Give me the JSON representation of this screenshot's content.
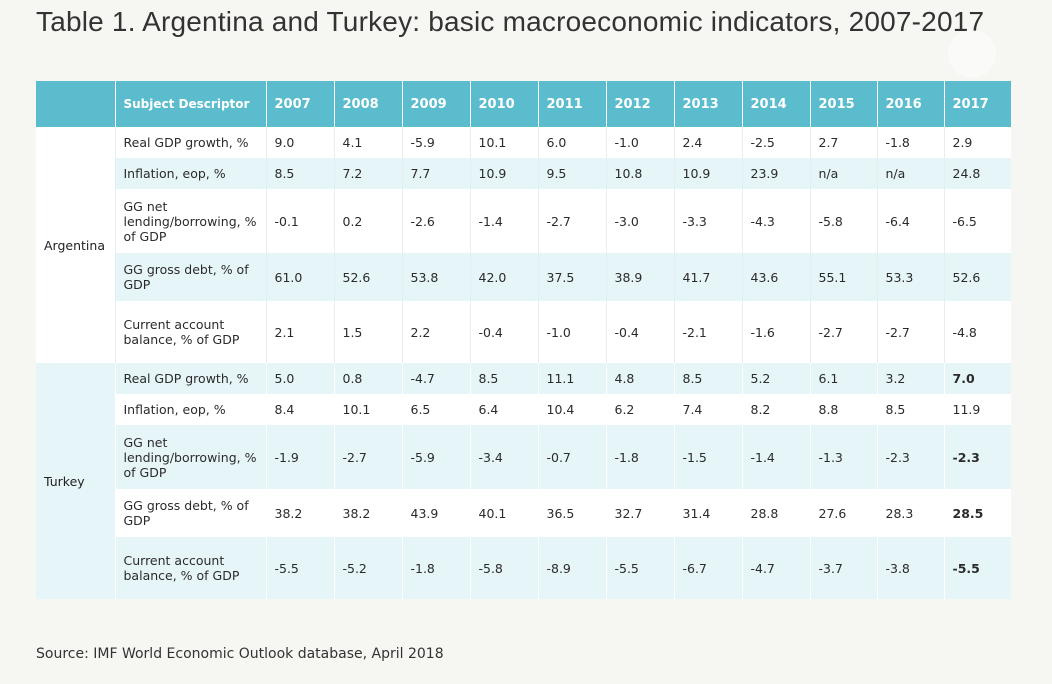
{
  "title": "Table 1. Argentina and Turkey: basic macroeconomic indicators, 2007-2017",
  "table": {
    "header": {
      "descriptor": "Subject Descriptor",
      "years": [
        "2007",
        "2008",
        "2009",
        "2010",
        "2011",
        "2012",
        "2013",
        "2014",
        "2015",
        "2016",
        "2017"
      ]
    },
    "groups": [
      {
        "country": "Argentina",
        "rows": [
          {
            "label": "Real GDP growth, %",
            "values": [
              "9.0",
              "4.1",
              "-5.9",
              "10.1",
              "6.0",
              "-1.0",
              "2.4",
              "-2.5",
              "2.7",
              "-1.8",
              "2.9"
            ]
          },
          {
            "label": "Inflation, eop, %",
            "values": [
              "8.5",
              "7.2",
              "7.7",
              "10.9",
              "9.5",
              "10.8",
              "10.9",
              "23.9",
              "n/a",
              "n/a",
              "24.8"
            ]
          },
          {
            "label": "GG net lending/borrowing, % of GDP",
            "values": [
              "-0.1",
              "0.2",
              "-2.6",
              "-1.4",
              "-2.7",
              "-3.0",
              "-3.3",
              "-4.3",
              "-5.8",
              "-6.4",
              "-6.5"
            ]
          },
          {
            "label": "GG gross debt, % of GDP",
            "values": [
              "61.0",
              "52.6",
              "53.8",
              "42.0",
              "37.5",
              "38.9",
              "41.7",
              "43.6",
              "55.1",
              "53.3",
              "52.6"
            ]
          },
          {
            "label": "Current account balance, % of GDP",
            "values": [
              "2.1",
              "1.5",
              "2.2",
              "-0.4",
              "-1.0",
              "-0.4",
              "-2.1",
              "-1.6",
              "-2.7",
              "-2.7",
              "-4.8"
            ]
          }
        ]
      },
      {
        "country": "Turkey",
        "rows": [
          {
            "label": "Real GDP growth, %",
            "values": [
              "5.0",
              "0.8",
              "-4.7",
              "8.5",
              "11.1",
              "4.8",
              "8.5",
              "5.2",
              "6.1",
              "3.2",
              "7.0"
            ]
          },
          {
            "label": "Inflation, eop, %",
            "values": [
              "8.4",
              "10.1",
              "6.5",
              "6.4",
              "10.4",
              "6.2",
              "7.4",
              "8.2",
              "8.8",
              "8.5",
              "11.9"
            ]
          },
          {
            "label": "GG net lending/borrowing, % of GDP",
            "values": [
              "-1.9",
              "-2.7",
              "-5.9",
              "-3.4",
              "-0.7",
              "-1.8",
              "-1.5",
              "-1.4",
              "-1.3",
              "-2.3",
              "-2.3"
            ]
          },
          {
            "label": "GG gross debt, % of GDP",
            "values": [
              "38.2",
              "38.2",
              "43.9",
              "40.1",
              "36.5",
              "32.7",
              "31.4",
              "28.8",
              "27.6",
              "28.3",
              "28.5"
            ]
          },
          {
            "label": "Current account balance, % of GDP",
            "values": [
              "-5.5",
              "-5.2",
              "-1.8",
              "-5.8",
              "-8.9",
              "-5.5",
              "-6.7",
              "-4.7",
              "-3.7",
              "-3.8",
              "-5.5"
            ]
          }
        ]
      }
    ]
  },
  "source": "Source: IMF World Economic Outlook database, April 2018",
  "colors": {
    "header_bg": "#5bbccd",
    "stripe_bg": "#e6f5f8",
    "page_bg": "#f6f6f2"
  }
}
